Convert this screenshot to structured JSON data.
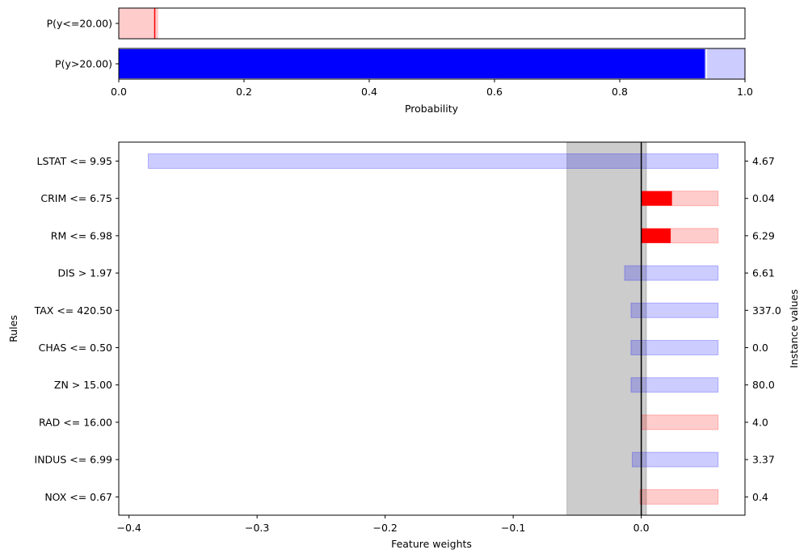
{
  "chart_data": [
    {
      "type": "bar",
      "orientation": "horizontal",
      "categories": [
        "P(y<=20.00)",
        "P(y>20.00)"
      ],
      "values": [
        0.06,
        0.94
      ],
      "intervals": [
        [
          0.055,
          0.063
        ],
        [
          0.936,
          0.945
        ]
      ],
      "xlim": [
        0,
        1
      ],
      "x_ticks": [
        0.0,
        0.2,
        0.4,
        0.6,
        0.8,
        1.0
      ],
      "x_tick_labels": [
        "0.0",
        "0.2",
        "0.4",
        "0.6",
        "0.8",
        "1.0"
      ],
      "xlabel": "Probability",
      "colors": {
        "low": "#ff0000",
        "low_band": "#ffcccc",
        "high": "#0000ff",
        "high_band": "#ccccff"
      }
    },
    {
      "type": "bar",
      "orientation": "horizontal",
      "categories": [
        "LSTAT <= 9.95",
        "CRIM <= 6.75",
        "RM <= 6.98",
        "DIS > 1.97",
        "TAX <= 420.50",
        "CHAS <= 0.50",
        "ZN > 15.00",
        "RAD <= 16.00",
        "INDUS <= 6.99",
        "NOX <= 0.67"
      ],
      "instance_values": [
        "4.67",
        "0.04",
        "6.29",
        "6.61",
        "337.0",
        "0.0",
        "80.0",
        "4.0",
        "3.37",
        "0.4"
      ],
      "weights": [
        -0.002,
        0.024,
        0.023,
        -0.013,
        -0.008,
        -0.008,
        -0.008,
        -0.001,
        -0.007,
        -0.002
      ],
      "intervals": [
        [
          -0.385,
          0.06
        ],
        [
          0.0,
          0.06
        ],
        [
          0.0,
          0.06
        ],
        [
          -0.013,
          0.06
        ],
        [
          -0.008,
          0.06
        ],
        [
          -0.008,
          0.06
        ],
        [
          -0.008,
          0.06
        ],
        [
          0.0,
          0.06
        ],
        [
          -0.007,
          0.06
        ],
        [
          -0.001,
          0.06
        ]
      ],
      "interval_colors": [
        "blue",
        "red",
        "red",
        "blue",
        "blue",
        "blue",
        "blue",
        "red",
        "blue",
        "red"
      ],
      "base_interval": [
        -0.058,
        0.004
      ],
      "xlim": [
        -0.408,
        0.081
      ],
      "x_ticks": [
        -0.4,
        -0.3,
        -0.2,
        -0.1,
        0.0
      ],
      "x_tick_labels": [
        "−0.4",
        "−0.3",
        "−0.2",
        "−0.1",
        "0.0"
      ],
      "xlabel": "Feature weights",
      "ylabel": "Rules",
      "ylabel_right": "Instance values",
      "colors": {
        "pos": "#ff0000",
        "pos_band": "#ff0000",
        "neg": "#0000ff",
        "neg_band": "#0000ff",
        "base": "#999999"
      }
    }
  ]
}
